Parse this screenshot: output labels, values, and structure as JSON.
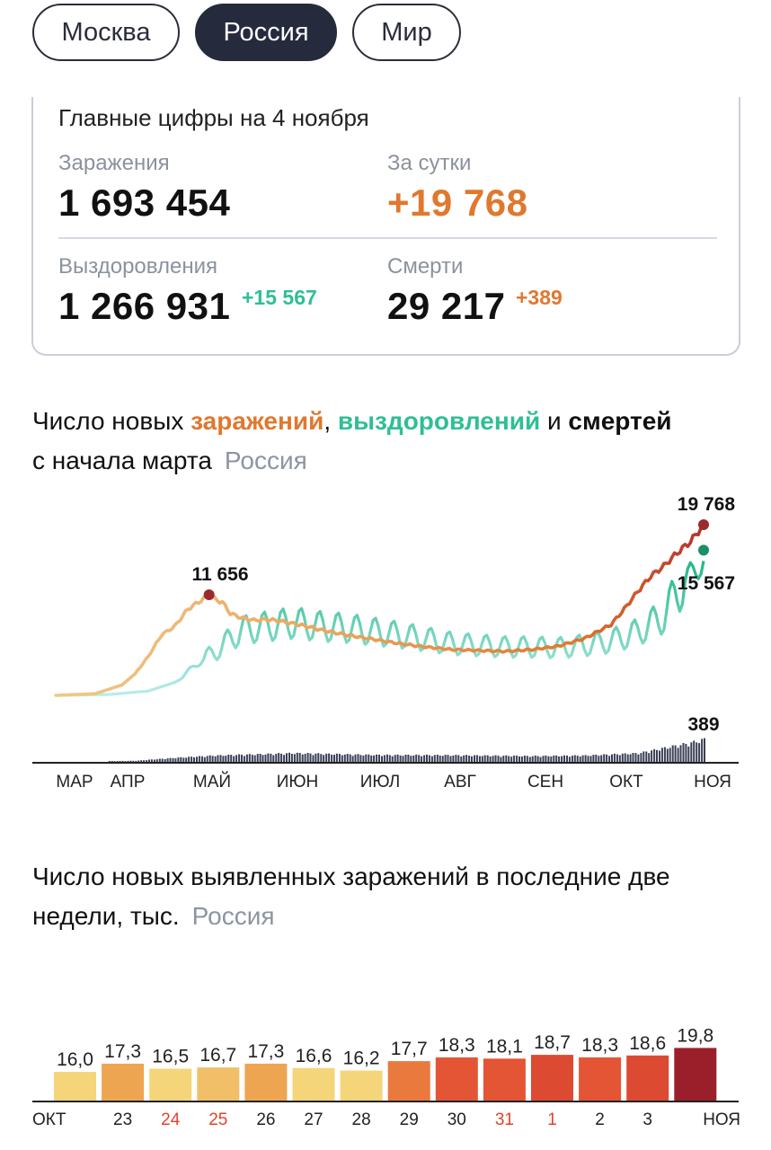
{
  "tabs": [
    {
      "label": "Москва",
      "active": false
    },
    {
      "label": "Россия",
      "active": true
    },
    {
      "label": "Мир",
      "active": false
    }
  ],
  "summary": {
    "title": "Главные цифры на 4 ноября",
    "infections": {
      "label": "Заражения",
      "value": "1 693 454"
    },
    "daily": {
      "label": "За сутки",
      "value": "+19 768"
    },
    "recoveries": {
      "label": "Выздоровления",
      "value": "1 266 931",
      "delta": "+15 567"
    },
    "deaths": {
      "label": "Смерти",
      "value": "29 217",
      "delta": "+389"
    }
  },
  "colors": {
    "infections": "#e0782f",
    "recoveries": "#2fbf94",
    "deaths": "#3a3f55",
    "peak_marker": "#9b2b2b",
    "recov_marker": "#1a8f68"
  },
  "line_chart_title": {
    "prefix": "Число новых ",
    "infections": "заражений",
    "sep": ", ",
    "recoveries": "выздоровлений",
    "and": " и ",
    "deaths": "смертей",
    "line2": "с начала марта",
    "region": "Россия"
  },
  "bar_chart_title": {
    "text": "Число новых выявленных заражений в последние две недели, тыс.",
    "region": "Россия"
  },
  "chart_data": [
    {
      "type": "line",
      "x_ticks": [
        "МАР",
        "АПР",
        "МАЙ",
        "ИЮН",
        "ИЮЛ",
        "АВГ",
        "СЕН",
        "ОКТ",
        "НОЯ"
      ],
      "series": [
        {
          "name": "заражений",
          "x": [
            0,
            15,
            25,
            30,
            35,
            40,
            45,
            50,
            55,
            58,
            61,
            63,
            66,
            70,
            75,
            80,
            85,
            90,
            95,
            100,
            110,
            120,
            130,
            140,
            150,
            160,
            170,
            180,
            190,
            200,
            210,
            215,
            220,
            225,
            230,
            235,
            240,
            245
          ],
          "values": [
            0,
            200,
            1200,
            2500,
            4500,
            7000,
            8000,
            10000,
            11000,
            11656,
            11000,
            10800,
            9500,
            9000,
            8700,
            8800,
            8600,
            8300,
            8000,
            7600,
            7000,
            6500,
            6000,
            5600,
            5300,
            5200,
            5100,
            5300,
            5700,
            6600,
            8200,
            10000,
            12000,
            13800,
            15000,
            16500,
            17800,
            19768
          ]
        },
        {
          "name": "выздоровлений",
          "x": [
            0,
            20,
            35,
            45,
            55,
            60,
            70,
            80,
            90,
            100,
            110,
            120,
            130,
            140,
            150,
            160,
            170,
            180,
            190,
            200,
            210,
            220,
            230,
            235,
            240,
            245
          ],
          "values": [
            0,
            100,
            500,
            1500,
            4000,
            5000,
            7500,
            8000,
            8400,
            8000,
            7800,
            7400,
            7000,
            6500,
            6000,
            5800,
            5600,
            5600,
            5500,
            5800,
            6300,
            7300,
            9200,
            12000,
            14000,
            15567
          ]
        },
        {
          "name": "смертей",
          "x": [
            0,
            30,
            45,
            60,
            90,
            120,
            150,
            180,
            200,
            220,
            240,
            245
          ],
          "values": [
            0,
            20,
            70,
            110,
            150,
            120,
            115,
            100,
            110,
            150,
            330,
            389
          ]
        }
      ],
      "annotations": [
        "11 656",
        "19 768",
        "15 567",
        "389"
      ]
    },
    {
      "type": "bar",
      "categories": [
        "ОКТ",
        "23",
        "24",
        "25",
        "26",
        "27",
        "28",
        "29",
        "30",
        "31",
        "1",
        "2",
        "3",
        "НОЯ"
      ],
      "values": [
        16.0,
        17.3,
        16.5,
        16.7,
        17.3,
        16.6,
        16.2,
        17.7,
        18.3,
        18.1,
        18.7,
        18.3,
        18.6,
        19.8
      ],
      "value_labels": [
        "16,0",
        "17,3",
        "16,5",
        "16,7",
        "17,3",
        "16,6",
        "16,2",
        "17,7",
        "18,3",
        "18,1",
        "18,7",
        "18,3",
        "18,6",
        "19,8"
      ],
      "weekend_categories": [
        "24",
        "25",
        "31",
        "1"
      ],
      "bar_colors": [
        "#f5d57a",
        "#eea552",
        "#f5d57a",
        "#f2bf69",
        "#eea552",
        "#f5d57a",
        "#f5d57a",
        "#e9793d",
        "#e35535",
        "#e35535",
        "#dc4a32",
        "#e35535",
        "#dc4a32",
        "#9b1f2b"
      ],
      "ylim": [
        0,
        20
      ]
    }
  ]
}
